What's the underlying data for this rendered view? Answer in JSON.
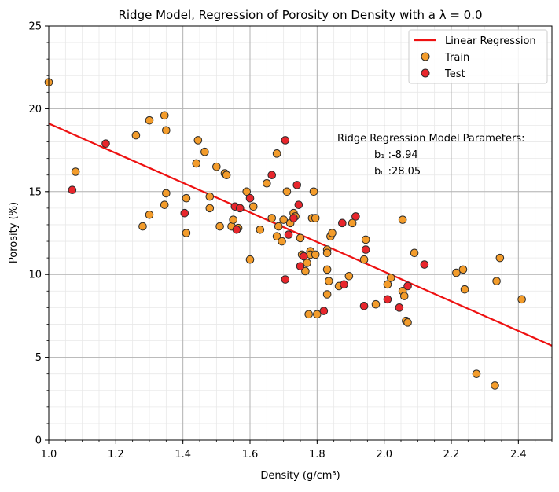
{
  "chart_data": {
    "type": "scatter",
    "title": "Ridge Model, Regression of Porosity on Density with a λ = 0.0",
    "xlabel": "Density (g/cm³)",
    "ylabel": "Porosity (%)",
    "xlim": [
      1.0,
      2.5
    ],
    "ylim": [
      0,
      25
    ],
    "x_ticks": [
      1.0,
      1.2,
      1.4,
      1.6,
      1.8,
      2.0,
      2.2,
      2.4
    ],
    "y_ticks": [
      0,
      5,
      10,
      15,
      20,
      25
    ],
    "grid": true,
    "legend_position": "top-right",
    "legend": [
      "Linear Regression",
      "Train",
      "Test"
    ],
    "colors": {
      "line": "#ee1111",
      "train": "#f39c2b",
      "test": "#e8262c",
      "edge": "#2b2b2b"
    },
    "regression": {
      "name": "Linear Regression",
      "slope": -8.94,
      "intercept": 28.05
    },
    "annotation": {
      "heading": "Ridge Regression Model Parameters:",
      "b1": "b₁ :-8.94",
      "b0": "b₀ :28.05"
    },
    "series": [
      {
        "name": "Train",
        "points": [
          [
            1.0,
            21.6
          ],
          [
            1.08,
            16.2
          ],
          [
            1.26,
            18.4
          ],
          [
            1.28,
            12.9
          ],
          [
            1.3,
            19.3
          ],
          [
            1.3,
            13.6
          ],
          [
            1.345,
            19.6
          ],
          [
            1.345,
            14.2
          ],
          [
            1.35,
            18.7
          ],
          [
            1.35,
            14.9
          ],
          [
            1.41,
            14.6
          ],
          [
            1.41,
            12.5
          ],
          [
            1.44,
            16.7
          ],
          [
            1.445,
            18.1
          ],
          [
            1.465,
            17.4
          ],
          [
            1.48,
            14.7
          ],
          [
            1.48,
            14.0
          ],
          [
            1.5,
            16.5
          ],
          [
            1.51,
            12.9
          ],
          [
            1.525,
            16.1
          ],
          [
            1.53,
            16.0
          ],
          [
            1.545,
            12.9
          ],
          [
            1.55,
            13.3
          ],
          [
            1.565,
            12.8
          ],
          [
            1.59,
            15.0
          ],
          [
            1.6,
            10.9
          ],
          [
            1.61,
            14.1
          ],
          [
            1.63,
            12.7
          ],
          [
            1.65,
            15.5
          ],
          [
            1.665,
            13.4
          ],
          [
            1.68,
            17.3
          ],
          [
            1.68,
            12.3
          ],
          [
            1.685,
            12.9
          ],
          [
            1.695,
            12.0
          ],
          [
            1.7,
            13.3
          ],
          [
            1.71,
            15.0
          ],
          [
            1.72,
            13.1
          ],
          [
            1.73,
            13.7
          ],
          [
            1.735,
            13.5
          ],
          [
            1.75,
            12.2
          ],
          [
            1.755,
            11.2
          ],
          [
            1.765,
            10.2
          ],
          [
            1.77,
            10.7
          ],
          [
            1.775,
            7.6
          ],
          [
            1.78,
            11.4
          ],
          [
            1.78,
            11.2
          ],
          [
            1.785,
            13.4
          ],
          [
            1.79,
            15.0
          ],
          [
            1.795,
            13.4
          ],
          [
            1.795,
            11.2
          ],
          [
            1.8,
            7.6
          ],
          [
            1.83,
            11.5
          ],
          [
            1.83,
            11.3
          ],
          [
            1.83,
            10.3
          ],
          [
            1.83,
            8.8
          ],
          [
            1.835,
            9.6
          ],
          [
            1.84,
            12.3
          ],
          [
            1.845,
            12.5
          ],
          [
            1.865,
            9.3
          ],
          [
            1.895,
            9.9
          ],
          [
            1.905,
            13.1
          ],
          [
            1.94,
            10.9
          ],
          [
            1.945,
            12.1
          ],
          [
            1.975,
            8.2
          ],
          [
            2.01,
            9.4
          ],
          [
            2.02,
            9.8
          ],
          [
            2.055,
            13.3
          ],
          [
            2.055,
            9.0
          ],
          [
            2.06,
            8.7
          ],
          [
            2.065,
            7.2
          ],
          [
            2.07,
            7.1
          ],
          [
            2.09,
            11.3
          ],
          [
            2.215,
            10.1
          ],
          [
            2.235,
            10.3
          ],
          [
            2.24,
            9.1
          ],
          [
            2.275,
            4.0
          ],
          [
            2.33,
            3.3
          ],
          [
            2.335,
            9.6
          ],
          [
            2.345,
            11.0
          ],
          [
            2.41,
            8.5
          ]
        ]
      },
      {
        "name": "Test",
        "points": [
          [
            1.07,
            15.1
          ],
          [
            1.17,
            17.9
          ],
          [
            1.405,
            13.7
          ],
          [
            1.555,
            14.1
          ],
          [
            1.56,
            12.7
          ],
          [
            1.57,
            14.0
          ],
          [
            1.6,
            14.6
          ],
          [
            1.665,
            16.0
          ],
          [
            1.705,
            18.1
          ],
          [
            1.705,
            9.7
          ],
          [
            1.715,
            12.4
          ],
          [
            1.73,
            13.4
          ],
          [
            1.74,
            15.4
          ],
          [
            1.745,
            14.2
          ],
          [
            1.75,
            10.5
          ],
          [
            1.76,
            11.1
          ],
          [
            1.82,
            7.8
          ],
          [
            1.875,
            13.1
          ],
          [
            1.88,
            9.4
          ],
          [
            1.915,
            13.5
          ],
          [
            1.94,
            8.1
          ],
          [
            1.945,
            11.5
          ],
          [
            2.01,
            8.5
          ],
          [
            2.045,
            8.0
          ],
          [
            2.07,
            9.3
          ],
          [
            2.12,
            10.6
          ]
        ]
      }
    ]
  }
}
